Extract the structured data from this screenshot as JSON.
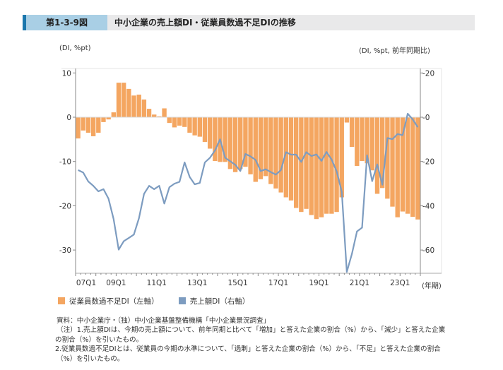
{
  "header": {
    "figure_number": "第1-3-9図",
    "title": "中小企業の売上額DI・従業員数過不足DIの推移"
  },
  "chart_data": {
    "type": "bar+line",
    "left_axis_label": "(DI, %pt)",
    "right_axis_label": "(DI, %pt, 前年同期比)",
    "x_unit_label": "(年期)",
    "left_ylim": [
      -35,
      11
    ],
    "right_ylim": [
      -70,
      22
    ],
    "left_ticks": [
      10,
      0,
      -10,
      -20,
      -30
    ],
    "left_tick_labels": [
      "10",
      "0",
      "-10",
      "-20",
      "-30"
    ],
    "right_ticks": [
      20,
      0,
      -20,
      -40,
      -60
    ],
    "right_tick_labels": [
      "20",
      "0",
      "-20",
      "-40",
      "-60"
    ],
    "x_tick_labels": [
      "07Q1",
      "09Q1",
      "11Q1",
      "13Q1",
      "15Q1",
      "17Q1",
      "19Q1",
      "21Q1",
      "23Q1"
    ],
    "x_start": "07Q1",
    "x_end": "23Q4",
    "grid": false,
    "legend_position": "bottom-left",
    "series": [
      {
        "name": "従業員数過不足DI（左軸）",
        "type": "bar",
        "axis": "left",
        "color": "#f4a661",
        "values": [
          -4.8,
          -3.0,
          -3.5,
          -4.3,
          -3.5,
          -1.1,
          -0.5,
          1.1,
          7.8,
          7.8,
          6.4,
          4.9,
          5.1,
          4.0,
          1.9,
          0.6,
          0.2,
          2.0,
          -1.3,
          -2.3,
          -1.9,
          -2.2,
          -3.5,
          -4.1,
          -4.4,
          -5.6,
          -7.1,
          -9.9,
          -10.1,
          -10.1,
          -11.7,
          -12.4,
          -11.7,
          -11.2,
          -12.9,
          -14.6,
          -14.0,
          -13.3,
          -15.1,
          -16.1,
          -17.0,
          -18.1,
          -18.8,
          -20.5,
          -21.4,
          -20.7,
          -22.1,
          -23.0,
          -22.6,
          -21.8,
          -21.8,
          -21.4,
          -18.1,
          -1.2,
          -6.7,
          -11.0,
          -9.9,
          -10.4,
          -12.0,
          -17.3,
          -16.0,
          -18.4,
          -20.2,
          -22.6,
          -21.3,
          -21.8,
          -22.5,
          -23.1
        ]
      },
      {
        "name": "売上額DI（右軸）",
        "type": "line",
        "axis": "right",
        "color": "#7d9cc0",
        "values": [
          -23.9,
          -25,
          -29,
          -31,
          -33.5,
          -32.5,
          -36.8,
          -46,
          -59.8,
          -56,
          -54.5,
          -53,
          -45.6,
          -34.6,
          -31,
          -32.5,
          -31,
          -39,
          -31.6,
          -30,
          -29.2,
          -20.4,
          -27,
          -30.3,
          -29.7,
          -20.4,
          -18.3,
          -15,
          -10,
          -18.3,
          -19.9,
          -21.5,
          -24.3,
          -16.6,
          -17.7,
          -19.3,
          -24.3,
          -23.5,
          -24.8,
          -25.9,
          -23.9,
          -15.8,
          -16.9,
          -16.9,
          -20.2,
          -15.8,
          -17.5,
          -16.8,
          -19.7,
          -15.7,
          -19.1,
          -24.5,
          -33.7,
          -69.9,
          -61.8,
          -51.6,
          -49.9,
          -17.2,
          -28.9,
          -21.3,
          -30.5,
          -9.4,
          -9.9,
          -7.6,
          -8.1,
          1.6,
          -1.0,
          -4.5
        ]
      }
    ]
  },
  "notes": {
    "source": "資料：中小企業庁・（独）中小企業基盤整備機構「中小企業景況調査」",
    "note1a": "（注）1.売上額DIは、今期の売上額について、前年同期と比べて「増加」と答えた企業の割合（%）から、「減少」と答えた企業",
    "note1b": "の割合（%）を引いたもの。",
    "note2a": "2.従業員数過不足DIとは、従業員の今期の水準について、「過剰」と答えた企業の割合（%）から、「不足」と答えた企業の割合",
    "note2b": "（%）を引いたもの。"
  }
}
